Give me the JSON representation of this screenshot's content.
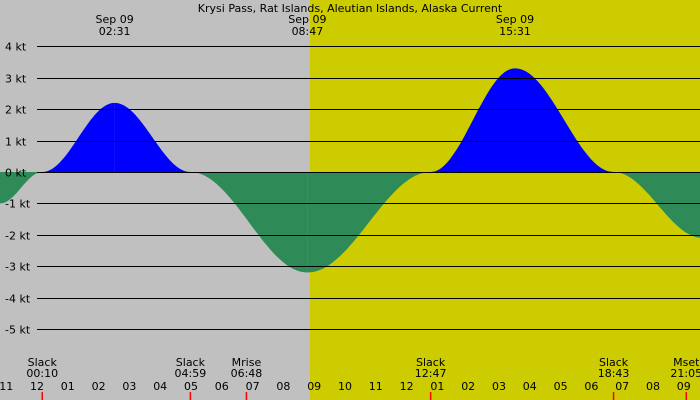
{
  "chart_data": {
    "type": "area",
    "title": "Krysi Pass, Rat Islands, Aleutian Islands, Alaska Current",
    "ylim": [
      -5.5,
      4.5
    ],
    "xlim": [
      -1.2,
      21.6
    ],
    "y_ticks": [
      {
        "value": 4,
        "label": "4 kt"
      },
      {
        "value": 3,
        "label": "3 kt"
      },
      {
        "value": 2,
        "label": "2 kt"
      },
      {
        "value": 1,
        "label": "1 kt"
      },
      {
        "value": 0,
        "label": "0 kt"
      },
      {
        "value": -1,
        "label": "-1 kt"
      },
      {
        "value": -2,
        "label": "-2 kt"
      },
      {
        "value": -3,
        "label": "-3 kt"
      },
      {
        "value": -4,
        "label": "-4 kt"
      },
      {
        "value": -5,
        "label": "-5 kt"
      }
    ],
    "x_ticks": [
      {
        "value": -1,
        "label": "11"
      },
      {
        "value": 0,
        "label": "12"
      },
      {
        "value": 1,
        "label": "01"
      },
      {
        "value": 2,
        "label": "02"
      },
      {
        "value": 3,
        "label": "03"
      },
      {
        "value": 4,
        "label": "04"
      },
      {
        "value": 5,
        "label": "05"
      },
      {
        "value": 6,
        "label": "06"
      },
      {
        "value": 7,
        "label": "07"
      },
      {
        "value": 8,
        "label": "08"
      },
      {
        "value": 9,
        "label": "09"
      },
      {
        "value": 10,
        "label": "10"
      },
      {
        "value": 11,
        "label": "11"
      },
      {
        "value": 12,
        "label": "12"
      },
      {
        "value": 13,
        "label": "01"
      },
      {
        "value": 14,
        "label": "02"
      },
      {
        "value": 15,
        "label": "03"
      },
      {
        "value": 16,
        "label": "04"
      },
      {
        "value": 17,
        "label": "05"
      },
      {
        "value": 18,
        "label": "06"
      },
      {
        "value": 19,
        "label": "07"
      },
      {
        "value": 20,
        "label": "08"
      },
      {
        "value": 21,
        "label": "09"
      }
    ],
    "extrema_labels": [
      {
        "time": 2.52,
        "date": "Sep 09",
        "time_label": "02:31"
      },
      {
        "time": 8.78,
        "date": "Sep 09",
        "time_label": "08:47"
      },
      {
        "time": 15.52,
        "date": "Sep 09",
        "time_label": "15:31"
      }
    ],
    "events": [
      {
        "time": 0.17,
        "name": "Slack",
        "time_label": "00:10"
      },
      {
        "time": 4.98,
        "name": "Slack",
        "time_label": "04:59"
      },
      {
        "time": 6.8,
        "name": "Mrise",
        "time_label": "06:48"
      },
      {
        "time": 12.78,
        "name": "Slack",
        "time_label": "12:47"
      },
      {
        "time": 18.72,
        "name": "Slack",
        "time_label": "18:43"
      },
      {
        "time": 21.08,
        "name": "Mset",
        "time_label": "21:05"
      }
    ],
    "tide_points": [
      {
        "time": -1.2,
        "speed": -1.0
      },
      {
        "time": 0.17,
        "speed": 0
      },
      {
        "time": 2.52,
        "speed": 2.2
      },
      {
        "time": 4.98,
        "speed": 0
      },
      {
        "time": 8.78,
        "speed": -3.2
      },
      {
        "time": 12.78,
        "speed": 0
      },
      {
        "time": 15.52,
        "speed": 3.3
      },
      {
        "time": 18.72,
        "speed": 0
      },
      {
        "time": 21.6,
        "speed": -2.1
      }
    ],
    "daylight_start": 8.85,
    "colors": {
      "night": "#c0c0c0",
      "day": "#cccc00",
      "flood": "#0000ff",
      "ebb": "#2e8b57",
      "grid": "#000000",
      "event_tick": "#ff0000"
    }
  }
}
